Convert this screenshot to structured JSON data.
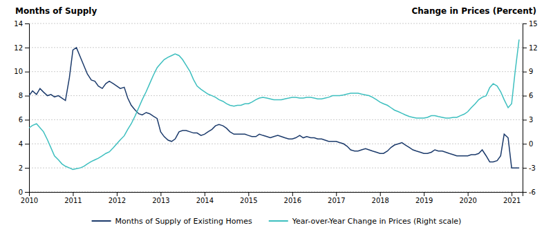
{
  "chart_data": {
    "type": "line",
    "ylabel": "Months of Supply",
    "y2label": "Change in Prices (Percent)",
    "x": [
      2010.0,
      2010.08,
      2010.17,
      2010.25,
      2010.33,
      2010.42,
      2010.5,
      2010.58,
      2010.67,
      2010.75,
      2010.83,
      2010.92,
      2011.0,
      2011.08,
      2011.17,
      2011.25,
      2011.33,
      2011.42,
      2011.5,
      2011.58,
      2011.67,
      2011.75,
      2011.83,
      2011.92,
      2012.0,
      2012.08,
      2012.17,
      2012.25,
      2012.33,
      2012.42,
      2012.5,
      2012.58,
      2012.67,
      2012.75,
      2012.83,
      2012.92,
      2013.0,
      2013.08,
      2013.17,
      2013.25,
      2013.33,
      2013.42,
      2013.5,
      2013.58,
      2013.67,
      2013.75,
      2013.83,
      2013.92,
      2014.0,
      2014.08,
      2014.17,
      2014.25,
      2014.33,
      2014.42,
      2014.5,
      2014.58,
      2014.67,
      2014.75,
      2014.83,
      2014.92,
      2015.0,
      2015.08,
      2015.17,
      2015.25,
      2015.33,
      2015.42,
      2015.5,
      2015.58,
      2015.67,
      2015.75,
      2015.83,
      2015.92,
      2016.0,
      2016.08,
      2016.17,
      2016.25,
      2016.33,
      2016.42,
      2016.5,
      2016.58,
      2016.67,
      2016.75,
      2016.83,
      2016.92,
      2017.0,
      2017.08,
      2017.17,
      2017.25,
      2017.33,
      2017.42,
      2017.5,
      2017.58,
      2017.67,
      2017.75,
      2017.83,
      2017.92,
      2018.0,
      2018.08,
      2018.17,
      2018.25,
      2018.33,
      2018.42,
      2018.5,
      2018.58,
      2018.67,
      2018.75,
      2018.83,
      2018.92,
      2019.0,
      2019.08,
      2019.17,
      2019.25,
      2019.33,
      2019.42,
      2019.5,
      2019.58,
      2019.67,
      2019.75,
      2019.83,
      2019.92,
      2020.0,
      2020.08,
      2020.17,
      2020.25,
      2020.33,
      2020.42,
      2020.5,
      2020.58,
      2020.67,
      2020.75,
      2020.83,
      2020.92,
      2021.0,
      2021.08,
      2021.17
    ],
    "series": [
      {
        "name": "Months of Supply of Existing Homes",
        "color": "#1b3a6b",
        "values": [
          8.0,
          8.4,
          8.1,
          8.6,
          8.3,
          8.0,
          8.1,
          7.9,
          8.0,
          7.8,
          7.6,
          9.5,
          11.8,
          12.0,
          11.2,
          10.5,
          9.8,
          9.3,
          9.2,
          8.8,
          8.6,
          9.0,
          9.2,
          9.0,
          8.8,
          8.6,
          8.7,
          7.8,
          7.2,
          6.8,
          6.5,
          6.4,
          6.6,
          6.5,
          6.3,
          6.1,
          5.0,
          4.6,
          4.3,
          4.2,
          4.4,
          5.0,
          5.1,
          5.1,
          5.0,
          4.9,
          4.9,
          4.7,
          4.8,
          5.0,
          5.2,
          5.5,
          5.6,
          5.5,
          5.3,
          5.0,
          4.8,
          4.8,
          4.8,
          4.8,
          4.7,
          4.6,
          4.6,
          4.8,
          4.7,
          4.6,
          4.5,
          4.6,
          4.7,
          4.6,
          4.5,
          4.4,
          4.4,
          4.5,
          4.7,
          4.5,
          4.6,
          4.5,
          4.5,
          4.4,
          4.4,
          4.3,
          4.2,
          4.2,
          4.2,
          4.1,
          4.0,
          3.8,
          3.5,
          3.4,
          3.4,
          3.5,
          3.6,
          3.5,
          3.4,
          3.3,
          3.2,
          3.2,
          3.4,
          3.7,
          3.9,
          4.0,
          4.1,
          3.9,
          3.7,
          3.5,
          3.4,
          3.3,
          3.2,
          3.2,
          3.3,
          3.5,
          3.4,
          3.4,
          3.3,
          3.2,
          3.1,
          3.0,
          3.0,
          3.0,
          3.0,
          3.1,
          3.1,
          3.2,
          3.5,
          3.0,
          2.5,
          2.5,
          2.6,
          3.0,
          4.8,
          4.5,
          2.0,
          2.0,
          2.0
        ]
      },
      {
        "name": "Year-over-Year Change in Prices (Right scale)",
        "color": "#3dbfbf",
        "axis": "y2",
        "values": [
          2.0,
          2.3,
          2.5,
          2.0,
          1.5,
          0.5,
          -0.5,
          -1.5,
          -2.0,
          -2.5,
          -2.8,
          -3.0,
          -3.2,
          -3.1,
          -3.0,
          -2.8,
          -2.5,
          -2.2,
          -2.0,
          -1.8,
          -1.5,
          -1.2,
          -1.0,
          -0.5,
          0.0,
          0.5,
          1.0,
          1.8,
          2.5,
          3.5,
          4.5,
          5.5,
          6.5,
          7.5,
          8.5,
          9.5,
          10.0,
          10.5,
          10.8,
          11.0,
          11.2,
          11.0,
          10.5,
          9.8,
          9.0,
          8.0,
          7.2,
          6.8,
          6.5,
          6.2,
          6.0,
          5.8,
          5.5,
          5.3,
          5.0,
          4.8,
          4.7,
          4.8,
          4.8,
          5.0,
          5.0,
          5.2,
          5.5,
          5.7,
          5.8,
          5.7,
          5.6,
          5.5,
          5.5,
          5.5,
          5.6,
          5.7,
          5.8,
          5.8,
          5.7,
          5.7,
          5.8,
          5.8,
          5.7,
          5.6,
          5.6,
          5.7,
          5.8,
          6.0,
          6.0,
          6.0,
          6.1,
          6.2,
          6.3,
          6.3,
          6.3,
          6.2,
          6.1,
          6.0,
          5.8,
          5.5,
          5.2,
          5.0,
          4.8,
          4.5,
          4.2,
          4.0,
          3.8,
          3.6,
          3.4,
          3.3,
          3.2,
          3.2,
          3.2,
          3.3,
          3.5,
          3.5,
          3.4,
          3.3,
          3.2,
          3.2,
          3.3,
          3.3,
          3.5,
          3.7,
          4.0,
          4.5,
          5.0,
          5.5,
          5.8,
          6.0,
          7.0,
          7.5,
          7.2,
          6.5,
          5.5,
          4.5,
          5.0,
          9.0,
          13.0
        ]
      }
    ],
    "xlim": [
      2010.0,
      2021.25
    ],
    "xticks": [
      2010,
      2011,
      2012,
      2013,
      2014,
      2015,
      2016,
      2017,
      2018,
      2019,
      2020,
      2021
    ],
    "ylim": [
      0,
      14
    ],
    "yticks": [
      0,
      2,
      4,
      6,
      8,
      10,
      12,
      14
    ],
    "y2lim": [
      -6,
      15
    ],
    "y2ticks": [
      -6,
      -3,
      0,
      3,
      6,
      9,
      12,
      15
    ],
    "grid": true,
    "legend": "bottom"
  }
}
